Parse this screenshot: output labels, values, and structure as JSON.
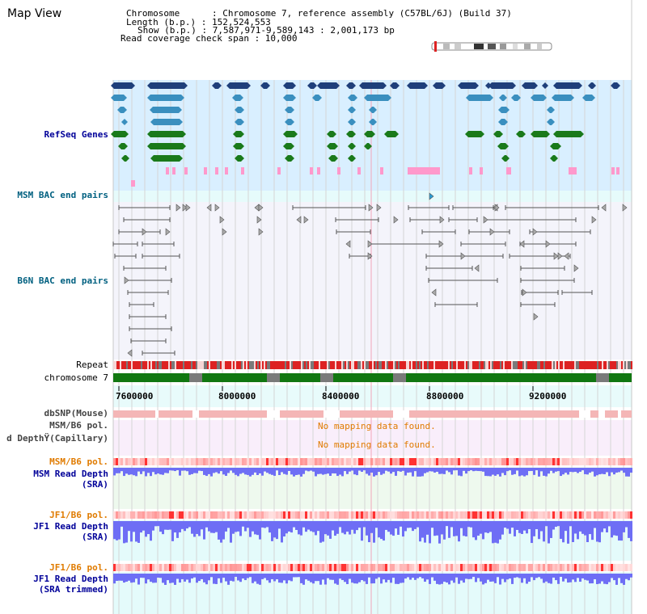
{
  "app": {
    "title": "Map View"
  },
  "header": {
    "chromosome_line": "Chromosome      : Chromosome 7, reference assembly (C57BL/6J) (Build 37)",
    "length_line": "Length (b.p.) : 152,524,553",
    "show_line": "Show (b.p.) : 7,587,971-9,589,143 : 2,001,173 bp",
    "coverage_line": "Read coverage check span : 10,000"
  },
  "tracks": {
    "refseq": "RefSeq Genes",
    "msm_bac": "MSM BAC end pairs",
    "b6n_bac": "B6N BAC end pairs",
    "repeat": "Repeat",
    "chromosome": "chromosome 7",
    "dbsnp": "dbSNP(Mouse)",
    "msm_b6_pol": "MSM/B6 pol.",
    "depth_capillary": "d DepthŸ(Capillary)",
    "msm_b6_pol2": "MSM/B6 pol.",
    "msm_depth": "MSM Read Depth",
    "msm_depth_sub": "(SRA)",
    "jf1_b6_pol": "JF1/B6 pol.",
    "jf1_depth": "JF1 Read Depth",
    "jf1_depth_sub": "(SRA)",
    "jf1_b6_pol2": "JF1/B6 pol.",
    "jf1_depth2": "JF1 Read Depth",
    "jf1_depth2_sub": "(SRA trimmed)"
  },
  "messages": {
    "no_mapping_1": "No mapping data found.",
    "no_mapping_2": "No mapping data found."
  },
  "axis": {
    "ticks": [
      "7600000",
      "8000000",
      "8400000",
      "8800000",
      "9200000"
    ]
  },
  "colors": {
    "gene_dark": "#1f3f7a",
    "gene_light": "#3a8fbf",
    "gene_green": "#1a7a1a",
    "gene_pink": "#ff99cc",
    "repeat_red": "#dd2222",
    "chrom_green": "#117711",
    "depth_blue": "#6e6ef5",
    "label_blue": "#000099",
    "label_orange": "#e07b00"
  }
}
